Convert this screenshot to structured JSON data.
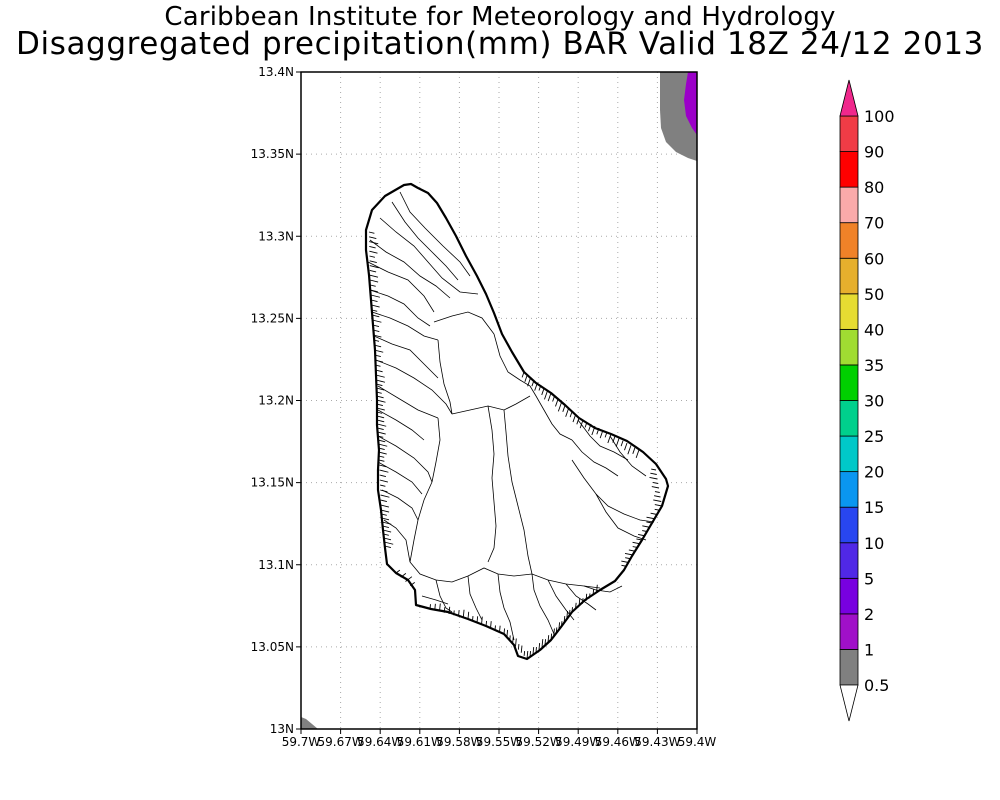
{
  "title": "Caribbean Institute for Meteorology and Hydrology",
  "subtitle": "Disaggregated precipitation(mm) BAR Valid 18Z 24/12 2013",
  "map": {
    "lat_range": [
      13.0,
      13.4
    ],
    "lon_range": [
      -59.7,
      -59.4
    ],
    "grid": true,
    "lat_ticks": [
      {
        "value": 13.4,
        "label": "13.4N"
      },
      {
        "value": 13.35,
        "label": "13.35N"
      },
      {
        "value": 13.3,
        "label": "13.3N"
      },
      {
        "value": 13.25,
        "label": "13.25N"
      },
      {
        "value": 13.2,
        "label": "13.2N"
      },
      {
        "value": 13.15,
        "label": "13.15N"
      },
      {
        "value": 13.1,
        "label": "13.1N"
      },
      {
        "value": 13.05,
        "label": "13.05N"
      },
      {
        "value": 13.0,
        "label": "13N"
      }
    ],
    "lon_ticks": [
      {
        "value": -59.7,
        "label": "59.7W"
      },
      {
        "value": -59.67,
        "label": "59.67W"
      },
      {
        "value": -59.64,
        "label": "59.64W"
      },
      {
        "value": -59.61,
        "label": "59.61W"
      },
      {
        "value": -59.58,
        "label": "59.58W"
      },
      {
        "value": -59.55,
        "label": "59.55W"
      },
      {
        "value": -59.52,
        "label": "59.52W"
      },
      {
        "value": -59.49,
        "label": "59.49W"
      },
      {
        "value": -59.46,
        "label": "59.46W"
      },
      {
        "value": -59.43,
        "label": "59.43W"
      },
      {
        "value": -59.4,
        "label": "59.4W"
      }
    ],
    "precip_areas": [
      {
        "name": "northeast-corner-0.5-1mm",
        "color": "#808080"
      },
      {
        "name": "northeast-corner-1-2mm",
        "color": "#9b00c8"
      },
      {
        "name": "southwest-corner-0.5-1mm",
        "color": "#808080"
      }
    ]
  },
  "legend": {
    "levels": [
      {
        "label": "0.5",
        "color": "#ffffff"
      },
      {
        "label": "1",
        "color": "#808080"
      },
      {
        "label": "2",
        "color": "#a010c8"
      },
      {
        "label": "5",
        "color": "#7800e0"
      },
      {
        "label": "10",
        "color": "#5028e6"
      },
      {
        "label": "15",
        "color": "#2846f0"
      },
      {
        "label": "20",
        "color": "#0a96f0"
      },
      {
        "label": "25",
        "color": "#00c8c8"
      },
      {
        "label": "30",
        "color": "#00d08c"
      },
      {
        "label": "35",
        "color": "#00d000"
      },
      {
        "label": "40",
        "color": "#a0dc32"
      },
      {
        "label": "50",
        "color": "#e6dc32"
      },
      {
        "label": "60",
        "color": "#e6af2d"
      },
      {
        "label": "70",
        "color": "#f08228"
      },
      {
        "label": "80",
        "color": "#faaaaa"
      },
      {
        "label": "90",
        "color": "#ff0000"
      },
      {
        "label": "100",
        "color": "#f03c46"
      }
    ],
    "top_arrow_color": "#f0288c",
    "bottom_arrow_color": "#ffffff"
  }
}
